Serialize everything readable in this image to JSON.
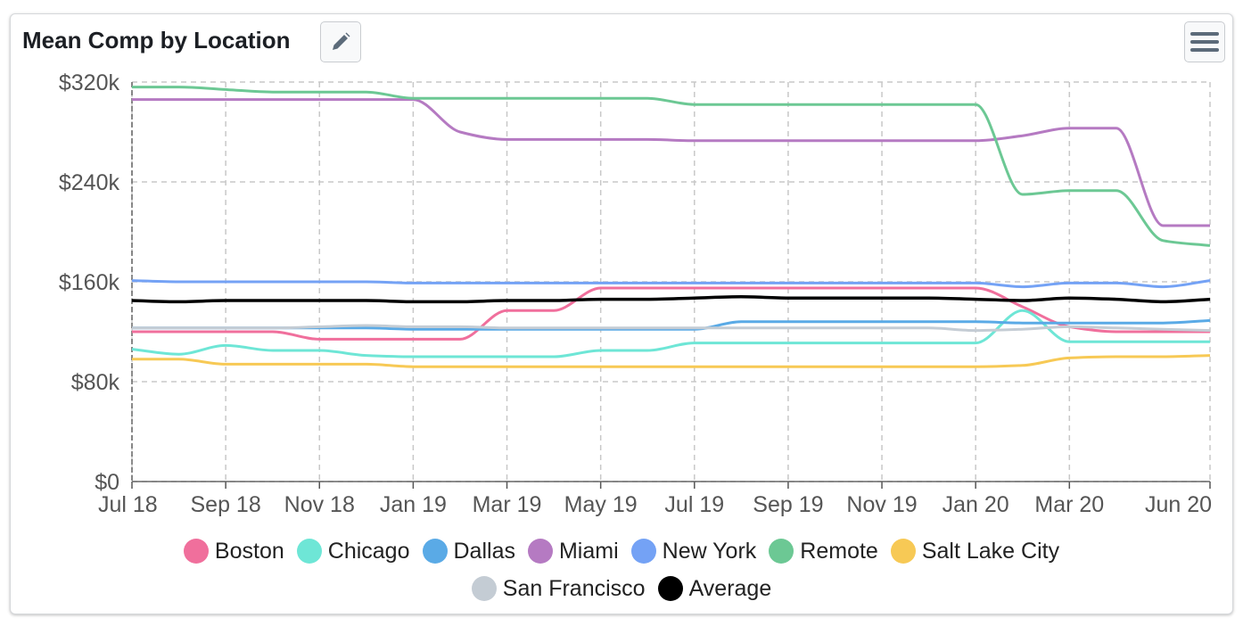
{
  "header": {
    "title": "Mean Comp by Location",
    "edit_icon": "pencil-icon",
    "menu_icon": "hamburger-menu-icon"
  },
  "chart_data": {
    "type": "line",
    "title": "Mean Comp by Location",
    "x": [
      "Jul 18",
      "Aug 18",
      "Sep 18",
      "Oct 18",
      "Nov 18",
      "Dec 18",
      "Jan 19",
      "Feb 19",
      "Mar 19",
      "Apr 19",
      "May 19",
      "Jun 19",
      "Jul 19",
      "Aug 19",
      "Sep 19",
      "Oct 19",
      "Nov 19",
      "Dec 19",
      "Jan 20",
      "Feb 20",
      "Mar 20",
      "Apr 20",
      "May 20",
      "Jun 20"
    ],
    "x_tick_labels": [
      "Jul 18",
      "Sep 18",
      "Nov 18",
      "Jan 19",
      "Mar 19",
      "May 19",
      "Jul 19",
      "Sep 19",
      "Nov 19",
      "Jan 20",
      "Mar 20",
      "Jun 20"
    ],
    "y_ticks": [
      0,
      80,
      160,
      240,
      320
    ],
    "y_tick_labels": [
      "$0",
      "$80k",
      "$160k",
      "$240k",
      "$320k"
    ],
    "y_unit": "thousands USD",
    "ylim": [
      0,
      320
    ],
    "grid": true,
    "legend_position": "bottom",
    "series": [
      {
        "name": "Boston",
        "color": "#f06f9c",
        "values": [
          120,
          120,
          120,
          120,
          114,
          114,
          114,
          114,
          137,
          137,
          155,
          155,
          155,
          155,
          155,
          155,
          155,
          155,
          155,
          140,
          124,
          120,
          120,
          120
        ]
      },
      {
        "name": "Chicago",
        "color": "#6ee6d6",
        "values": [
          106,
          102,
          109,
          105,
          105,
          101,
          100,
          100,
          100,
          100,
          105,
          105,
          111,
          111,
          111,
          111,
          111,
          111,
          111,
          137,
          112,
          112,
          112,
          112
        ]
      },
      {
        "name": "Dallas",
        "color": "#5aaae6",
        "values": [
          123,
          123,
          123,
          123,
          123,
          123,
          122,
          122,
          122,
          122,
          122,
          122,
          122,
          128,
          128,
          128,
          128,
          128,
          128,
          127,
          127,
          127,
          127,
          129
        ]
      },
      {
        "name": "Miami",
        "color": "#b57ac2",
        "values": [
          306,
          306,
          306,
          306,
          306,
          306,
          306,
          280,
          274,
          274,
          274,
          274,
          273,
          273,
          273,
          273,
          273,
          273,
          273,
          277,
          283,
          283,
          205,
          205
        ]
      },
      {
        "name": "New York",
        "color": "#74a2f5",
        "values": [
          161,
          160,
          160,
          160,
          160,
          160,
          159,
          159,
          159,
          159,
          159,
          159,
          159,
          159,
          159,
          159,
          159,
          159,
          159,
          156,
          159,
          159,
          156,
          161
        ]
      },
      {
        "name": "Remote",
        "color": "#6cc894",
        "values": [
          316,
          316,
          314,
          312,
          312,
          312,
          307,
          307,
          307,
          307,
          307,
          307,
          302,
          302,
          302,
          302,
          302,
          302,
          302,
          230,
          233,
          233,
          193,
          189
        ]
      },
      {
        "name": "Salt Lake City",
        "color": "#f7c955",
        "values": [
          98,
          98,
          94,
          94,
          94,
          94,
          92,
          92,
          92,
          92,
          92,
          92,
          92,
          92,
          92,
          92,
          92,
          92,
          92,
          93,
          99,
          100,
          100,
          101
        ]
      },
      {
        "name": "San Francisco",
        "color": "#c4ccd4",
        "values": [
          123,
          123,
          123,
          123,
          124,
          125,
          124,
          124,
          123,
          123,
          123,
          123,
          123,
          123,
          123,
          123,
          123,
          123,
          121,
          122,
          124,
          123,
          122,
          121
        ]
      },
      {
        "name": "Average",
        "color": "#000000",
        "values": [
          145,
          144,
          145,
          145,
          145,
          145,
          144,
          144,
          145,
          145,
          146,
          146,
          147,
          148,
          147,
          147,
          147,
          147,
          146,
          145,
          147,
          146,
          144,
          146
        ]
      }
    ]
  }
}
